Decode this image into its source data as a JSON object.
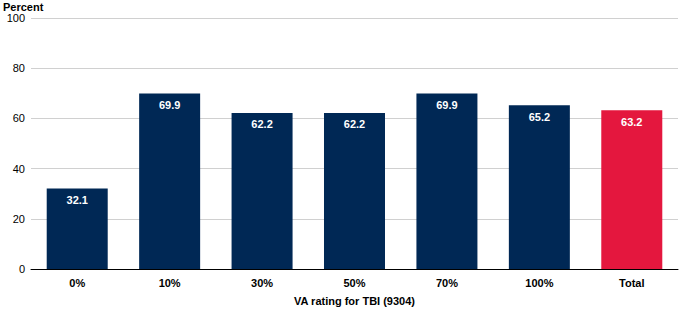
{
  "chart_data": {
    "type": "bar",
    "y_label": "Percent",
    "x_label": "VA rating for TBI (9304)",
    "categories": [
      "0%",
      "10%",
      "30%",
      "50%",
      "70%",
      "100%",
      "Total"
    ],
    "values": [
      32.1,
      69.9,
      62.2,
      62.2,
      69.9,
      65.2,
      63.2
    ],
    "colors": [
      "#002855",
      "#002855",
      "#002855",
      "#002855",
      "#002855",
      "#002855",
      "#e4173e"
    ],
    "ylim": [
      0,
      100
    ],
    "yticks": [
      0,
      20,
      40,
      60,
      80,
      100
    ],
    "grid": true,
    "data_labels": true
  }
}
